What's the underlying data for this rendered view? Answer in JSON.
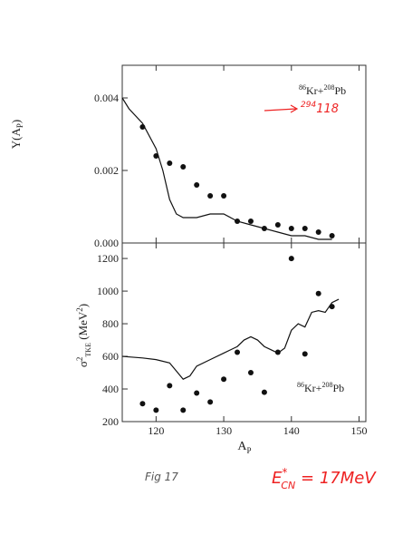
{
  "chart_data": [
    {
      "type": "scatter",
      "ylabel": [
        "Y(A",
        "P",
        ")"
      ],
      "annotation": [
        "86",
        "Kr+",
        "208",
        "Pb"
      ],
      "arrow_label": [
        "294",
        "118"
      ],
      "xlim": [
        115,
        151
      ],
      "xticks": [
        120,
        130,
        140,
        150
      ],
      "ylim": [
        0,
        0.0049
      ],
      "yticks": [
        {
          "value": 0,
          "label": "0.000"
        },
        {
          "value": 0.002,
          "label": "0.002"
        },
        {
          "value": 0.004,
          "label": "0.004"
        }
      ],
      "points": {
        "x": [
          118,
          120,
          122,
          124,
          126,
          128,
          130,
          132,
          134,
          136,
          138,
          140,
          142,
          144,
          146
        ],
        "values": [
          0.0032,
          0.0024,
          0.0022,
          0.0021,
          0.0016,
          0.0013,
          0.0013,
          0.0006,
          0.0006,
          0.0004,
          0.0005,
          0.0004,
          0.0004,
          0.0003,
          0.0002
        ]
      },
      "curve": {
        "x": [
          115,
          116,
          118,
          120,
          121,
          122,
          123,
          124,
          126,
          128,
          129,
          130,
          132,
          134,
          136,
          138,
          140,
          142,
          144,
          146
        ],
        "values": [
          0.004,
          0.0037,
          0.0033,
          0.0026,
          0.002,
          0.0012,
          0.0008,
          0.0007,
          0.0007,
          0.0008,
          0.0008,
          0.0008,
          0.0006,
          0.0005,
          0.0004,
          0.0003,
          0.0002,
          0.0002,
          0.0001,
          0.0001
        ]
      }
    },
    {
      "type": "scatter",
      "ylabel": [
        "σ",
        "2",
        "TKE",
        " (MeV",
        "2",
        ")"
      ],
      "xlabel": [
        "A",
        "P"
      ],
      "annotation": [
        "86",
        "Kr+",
        "208",
        "Pb"
      ],
      "xlim": [
        115,
        151
      ],
      "xticks": [
        120,
        130,
        140,
        150
      ],
      "ylim": [
        200,
        1295
      ],
      "yticks": [
        200,
        400,
        600,
        800,
        1000,
        1200
      ],
      "points": {
        "x": [
          118,
          120,
          122,
          124,
          126,
          128,
          130,
          132,
          134,
          136,
          138,
          140,
          142,
          144,
          146
        ],
        "values": [
          310,
          270,
          420,
          270,
          375,
          320,
          460,
          625,
          500,
          380,
          625,
          1200,
          615,
          985,
          905
        ]
      },
      "curve": {
        "x": [
          115,
          118,
          120,
          122,
          123,
          124,
          125,
          126,
          128,
          130,
          132,
          133,
          134,
          135,
          136,
          137,
          138,
          139,
          140,
          141,
          142,
          143,
          144,
          145,
          146,
          147
        ],
        "values": [
          600,
          590,
          580,
          560,
          510,
          460,
          480,
          540,
          580,
          620,
          660,
          700,
          720,
          700,
          660,
          640,
          620,
          650,
          760,
          800,
          780,
          870,
          880,
          870,
          930,
          950
        ]
      }
    }
  ],
  "notes": {
    "fig": "Fig 17",
    "energy": [
      "E",
      "*",
      "CN",
      " = 17MeV"
    ]
  }
}
